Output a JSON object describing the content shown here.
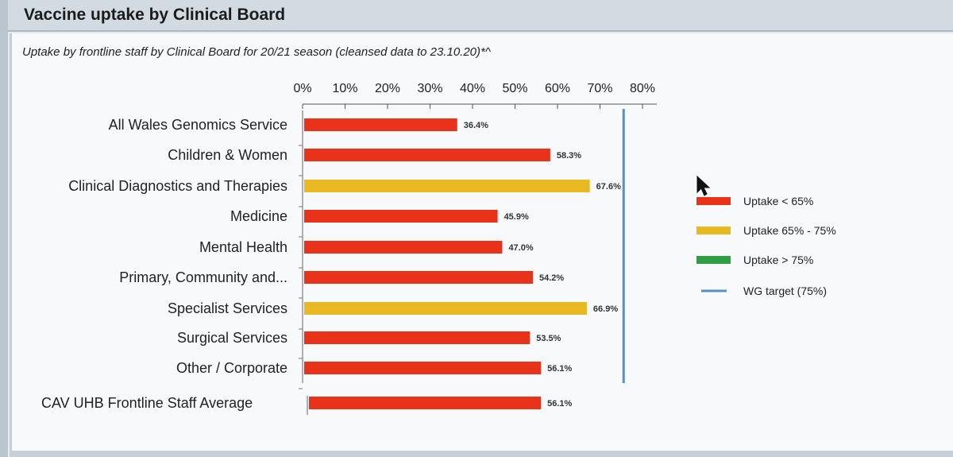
{
  "header": {
    "title": "Vaccine uptake by Clinical Board"
  },
  "chart_data": {
    "type": "bar",
    "orientation": "horizontal",
    "title": "Uptake by frontline staff by Clinical Board for 20/21 season (cleansed data to 23.10.20)*^",
    "xlim": [
      0,
      80
    ],
    "ticks": [
      0,
      10,
      20,
      30,
      40,
      50,
      60,
      70,
      80
    ],
    "tick_labels": [
      "0%",
      "10%",
      "20%",
      "30%",
      "40%",
      "50%",
      "60%",
      "70%",
      "80%"
    ],
    "categories": [
      "All Wales Genomics Service",
      "Children & Women",
      "Clinical Diagnostics and Therapies",
      "Medicine",
      "Mental Health",
      "Primary, Community and...",
      "Specialist Services",
      "Surgical Services",
      "Other / Corporate",
      "CAV UHB Frontline Staff Average"
    ],
    "values": [
      36.4,
      58.3,
      67.6,
      45.9,
      47.0,
      54.2,
      66.9,
      53.5,
      56.1,
      56.1
    ],
    "value_labels": [
      "36.4%",
      "58.3%",
      "67.6%",
      "45.9%",
      "47.0%",
      "54.2%",
      "66.9%",
      "53.5%",
      "56.1%",
      "56.1%"
    ],
    "target": {
      "value": 75,
      "label": "WG target (75%)",
      "color": "#5b8fc1"
    },
    "bands": [
      {
        "label": "Uptake < 65%",
        "color": "#e8321a"
      },
      {
        "label": "Uptake 65% - 75%",
        "color": "#e8b923"
      },
      {
        "label": "Uptake > 75%",
        "color": "#2f9e44"
      }
    ],
    "legend_position": "right",
    "grid": false
  }
}
